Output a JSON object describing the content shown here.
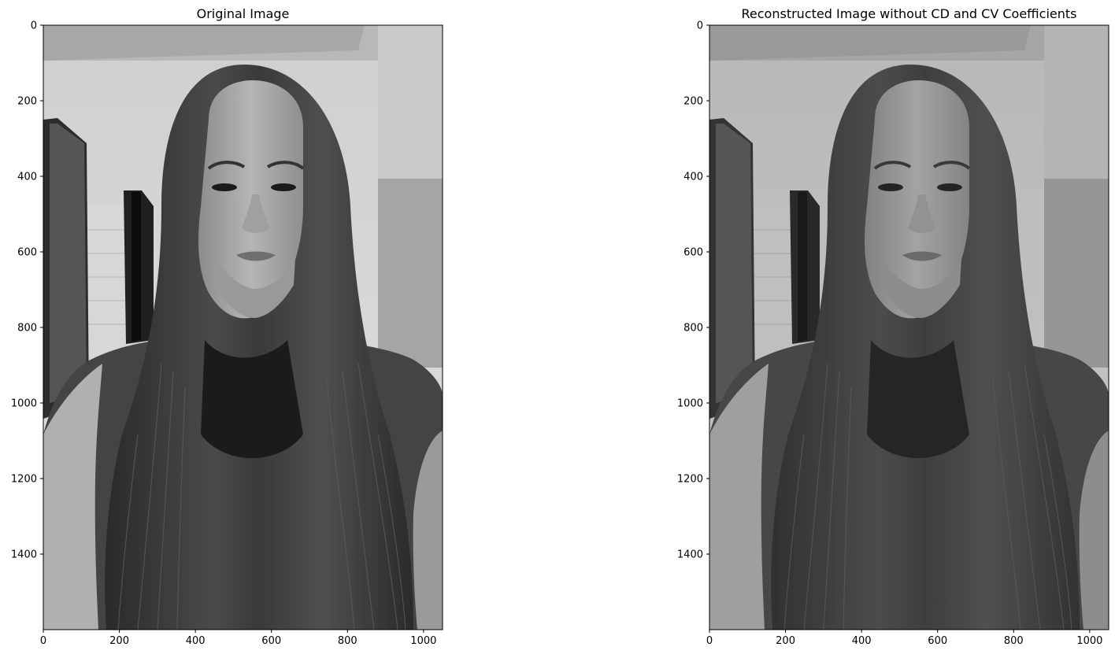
{
  "figure": {
    "panels": [
      {
        "title": "Original Image",
        "variant": "original",
        "x_ticks": [
          0,
          200,
          400,
          600,
          800,
          1000
        ],
        "y_ticks": [
          0,
          200,
          400,
          600,
          800,
          1000,
          1200,
          1400
        ],
        "x_range": [
          0,
          1050
        ],
        "y_range": [
          0,
          1600
        ]
      },
      {
        "title": "Reconstructed Image without CD and CV Coefficients",
        "variant": "reconstructed",
        "x_ticks": [
          0,
          200,
          400,
          600,
          800,
          1000
        ],
        "y_ticks": [
          0,
          200,
          400,
          600,
          800,
          1000,
          1200,
          1400
        ],
        "x_range": [
          0,
          1050
        ],
        "y_range": [
          0,
          1600
        ]
      }
    ],
    "colors": {
      "background": "#ffffff",
      "frame": "#000000",
      "photo_gray": "grayscale"
    }
  }
}
